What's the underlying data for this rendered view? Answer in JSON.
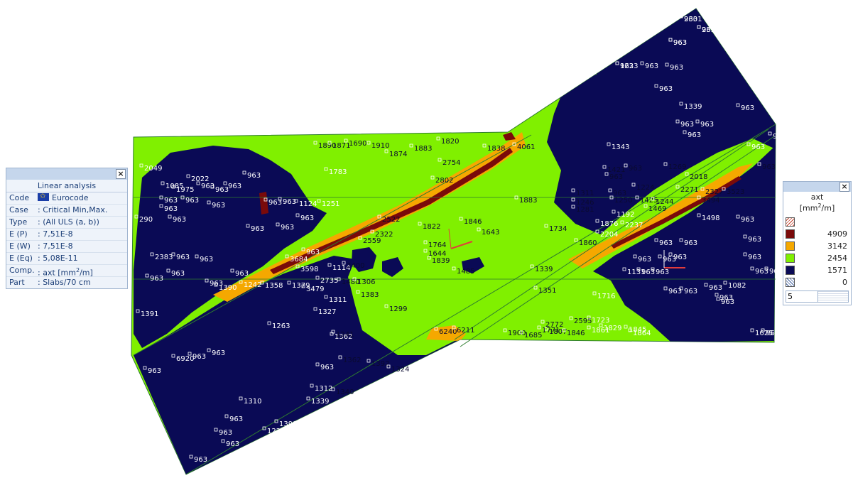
{
  "info_panel": {
    "close_label": "×",
    "header": "Linear analysis",
    "rows": [
      {
        "key": "Code",
        "value": "Eurocode",
        "icon": "eu-flag-icon"
      },
      {
        "key": "Case",
        "value": ": Critical Min,Max."
      },
      {
        "key": "Type",
        "value": ": (All ULS  (a, b))"
      },
      {
        "key": "E (P)",
        "value": ": 7,51E-8"
      },
      {
        "key": "E (W)",
        "value": ": 7,51E-8"
      },
      {
        "key": "E (Eq)",
        "value": ": 5,08E-11"
      },
      {
        "key": "Comp.",
        "value_prefix": ": axt [mm",
        "value_sup": "2",
        "value_suffix": "/m]"
      },
      {
        "key": "Part",
        "value": ": Slabs/70 cm"
      }
    ]
  },
  "legend": {
    "close_label": "×",
    "title_line1": "axt",
    "title_line2_prefix": "[mm",
    "title_line2_sup": "2",
    "title_line2_suffix": "/m]",
    "entries": [
      {
        "value": "",
        "color": "hatch-red"
      },
      {
        "value": "4909",
        "color": "#7a0a0a"
      },
      {
        "value": "3142",
        "color": "#f5a800"
      },
      {
        "value": "2454",
        "color": "#80f000"
      },
      {
        "value": "1571",
        "color": "#0a0a55"
      },
      {
        "value": "0",
        "color": "hatch-blue"
      }
    ],
    "levels_value": "5"
  },
  "colors": {
    "navy": "#0a0a55",
    "green": "#80f000",
    "orange": "#f5a800",
    "darkred": "#7a0a0a",
    "outline": "#2e7d2e"
  },
  "plot_labels": [
    "963",
    "963",
    "963",
    "1223",
    "963",
    "963",
    "963",
    "1339",
    "963",
    "963",
    "963",
    "963",
    "963",
    "1343",
    "963",
    "1269",
    "2018",
    "1421",
    "963",
    "963",
    "963",
    "1224",
    "1311",
    "1246",
    "1281",
    "1425",
    "1244",
    "1469",
    "1192",
    "1876",
    "1860",
    "2204",
    "2237",
    "2271",
    "2327",
    "3523",
    "3494",
    "1498",
    "963",
    "963",
    "963",
    "963",
    "963",
    "963",
    "963",
    "963",
    "1131",
    "963",
    "963",
    "963",
    "963",
    "963",
    "963",
    "1082",
    "963",
    "963",
    "1250",
    "1883",
    "1734",
    "1820",
    "1890",
    "1871",
    "1690",
    "1910",
    "1874",
    "1883",
    "2754",
    "2802",
    "1783",
    "2522",
    "1822",
    "1846",
    "1643",
    "1764",
    "1644",
    "1839",
    "1485",
    "2049",
    "1085",
    "2022",
    "1975",
    "963",
    "963",
    "963",
    "963",
    "963",
    "963",
    "963",
    "290",
    "963",
    "963",
    "1124",
    "1251",
    "963",
    "963",
    "963",
    "963",
    "963",
    "963",
    "3684",
    "3598",
    "1114",
    "2400",
    "2559",
    "2322",
    "2383",
    "963",
    "963",
    "963",
    "963",
    "963",
    "963",
    "1390",
    "1242",
    "1358",
    "1379",
    "3479",
    "2735",
    "1480",
    "1306",
    "1311",
    "1383",
    "1263",
    "1327",
    "1362",
    "1241",
    "1299",
    "1351",
    "1339",
    "1716",
    "2772",
    "2595",
    "1723",
    "1829",
    "1900",
    "1807",
    "1771",
    "1846",
    "1861",
    "1845",
    "1864",
    "1685",
    "1838",
    "4061",
    "6240",
    "6211",
    "6920",
    "963",
    "963",
    "963",
    "963",
    "1362",
    "1392",
    "1324",
    "1312",
    "1340",
    "1339",
    "1222",
    "1398",
    "1310",
    "963",
    "963",
    "963",
    "963",
    "1391",
    "1625",
    "963",
    "963",
    "963",
    "2301",
    "2314",
    "963",
    "963"
  ]
}
